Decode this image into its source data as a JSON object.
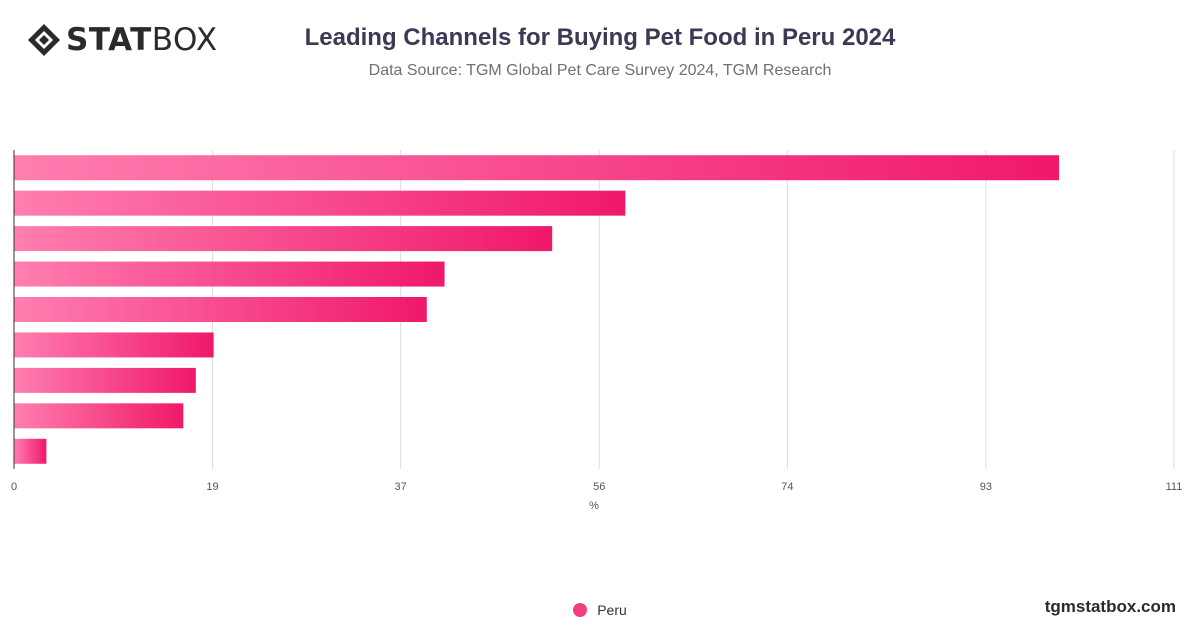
{
  "header": {
    "logo_text_bold": "STAT",
    "logo_text_light": "BOX",
    "title": "Leading Channels for Buying Pet Food in Peru 2024",
    "subtitle": "Data Source: TGM Global Pet Care Survey 2024, TGM Research"
  },
  "footer": {
    "brand": "tgmstatbox.com"
  },
  "colors": {
    "bar_start": "#ff7eb0",
    "bar_end": "#f0186a",
    "grid": "#dddddd",
    "legend_dot": "#f23d7f"
  },
  "chart_data": {
    "type": "bar",
    "orientation": "horizontal",
    "title": "Leading Channels for Buying Pet Food in Peru 2024",
    "xlabel": "%",
    "xlim": [
      0,
      111
    ],
    "x_ticks": [
      "0",
      "19",
      "37",
      "56",
      "74",
      "93",
      "111"
    ],
    "series": [
      {
        "name": "Peru",
        "values": [
          100,
          58.5,
          51.5,
          41.2,
          39.5,
          19.1,
          17.4,
          16.2,
          3.1
        ]
      }
    ],
    "legend": {
      "position": "bottom-center"
    },
    "grid": true
  }
}
